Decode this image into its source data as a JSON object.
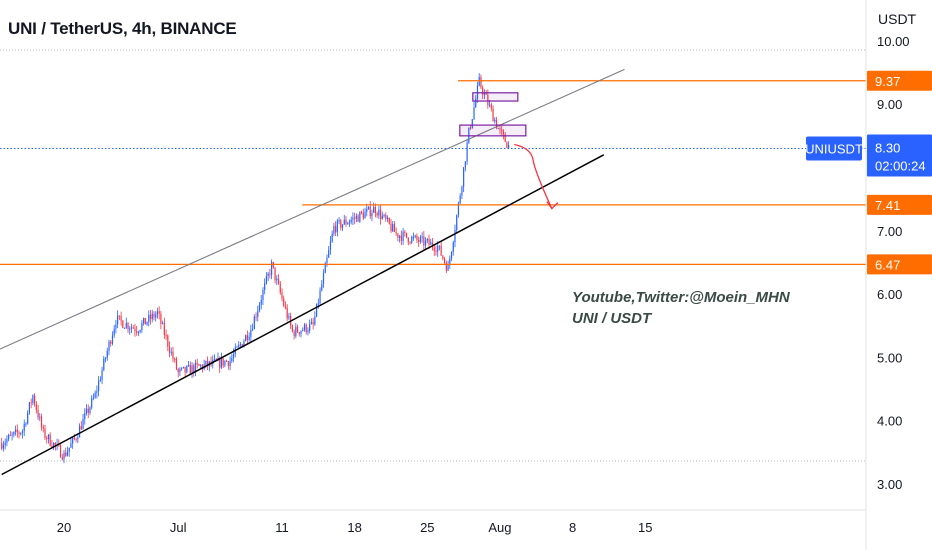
{
  "header": {
    "title": "UNI / TetherUS, 4h, BINANCE",
    "currency": "USDT"
  },
  "annotations": {
    "line1": "Youtube,Twitter:@Moein_MHN",
    "line2": "UNI / USDT"
  },
  "price_tags": {
    "symbol_label": "UNIUSDT",
    "current_price": "8.30",
    "countdown": "02:00:24",
    "levels": [
      "9.37",
      "7.41",
      "6.47"
    ]
  },
  "colors": {
    "up": "#2962ff",
    "down": "#f23645",
    "level_line": "#ff6d00",
    "current_tag": "#2962ff",
    "drawing_box": "#7b1fa2",
    "arrow": "#f23645",
    "channel_top": "#787b86",
    "channel_bottom": "#000000"
  },
  "chart_data": {
    "type": "candlestick",
    "symbol": "UNI / TetherUS",
    "timeframe": "4h",
    "exchange": "BINANCE",
    "y_axis": {
      "ticks": [
        "3.00",
        "4.00",
        "5.00",
        "6.00",
        "7.00",
        "8.00",
        "9.00",
        "10.00"
      ],
      "range": [
        2.75,
        10.1
      ]
    },
    "x_axis": {
      "ticks": [
        "20",
        "Jul",
        "11",
        "18",
        "25",
        "Aug",
        "8",
        "15"
      ]
    },
    "horizontal_levels": [
      9.37,
      7.41,
      6.47
    ],
    "current_price": 8.3,
    "trend_channel": {
      "upper": [
        [
          "Jun 10",
          4.85
        ],
        [
          "Aug 13",
          9.55
        ]
      ],
      "lower": [
        [
          "Jun 14",
          3.15
        ],
        [
          "Aug 11",
          8.2
        ]
      ]
    },
    "close_path": [
      [
        "Jun 14",
        3.65
      ],
      [
        "Jun 16",
        3.85
      ],
      [
        "Jun 17",
        4.4
      ],
      [
        "Jun 18",
        3.8
      ],
      [
        "Jun 20",
        3.45
      ],
      [
        "Jun 21",
        3.7
      ],
      [
        "Jun 23",
        4.4
      ],
      [
        "Jun 25",
        5.6
      ],
      [
        "Jun 27",
        5.45
      ],
      [
        "Jun 29",
        5.7
      ],
      [
        "Jul 1",
        4.75
      ],
      [
        "Jul 3",
        4.85
      ],
      [
        "Jul 6",
        4.95
      ],
      [
        "Jul 8",
        5.45
      ],
      [
        "Jul 10",
        6.45
      ],
      [
        "Jul 12",
        5.4
      ],
      [
        "Jul 14",
        5.5
      ],
      [
        "Jul 16",
        7.05
      ],
      [
        "Jul 18",
        7.2
      ],
      [
        "Jul 20",
        7.35
      ],
      [
        "Jul 22",
        6.95
      ],
      [
        "Jul 24",
        6.85
      ],
      [
        "Jul 26",
        6.75
      ],
      [
        "Jul 27",
        6.4
      ],
      [
        "Jul 28",
        7.4
      ],
      [
        "Jul 29",
        8.55
      ],
      [
        "Jul 30",
        9.35
      ],
      [
        "Jul 31",
        8.95
      ],
      [
        "Aug 1",
        8.55
      ],
      [
        "Aug 2",
        8.3
      ]
    ],
    "projection": [
      [
        "Aug 2",
        8.3
      ],
      [
        "Aug 4",
        8.15
      ],
      [
        "Aug 6",
        7.35
      ]
    ]
  }
}
